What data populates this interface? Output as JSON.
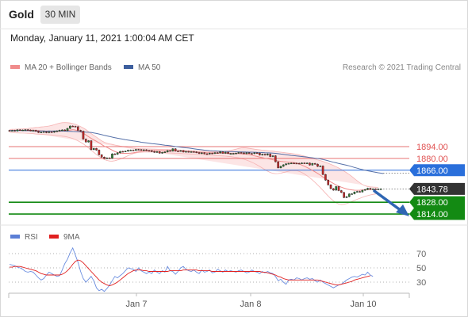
{
  "header": {
    "title": "Gold",
    "timeframe": "30 MIN"
  },
  "datetime": "Monday, January 11, 2021 1:00:04 AM CET",
  "legend": {
    "main": [
      {
        "label": "MA 20 + Bollinger Bands",
        "color": "#f08c8c"
      },
      {
        "label": "MA 50",
        "color": "#3d5f9e"
      }
    ],
    "rsi": [
      {
        "label": "RSI",
        "color": "#5b7fd6"
      },
      {
        "label": "9MA",
        "color": "#e02020"
      }
    ]
  },
  "copyright": "Research © 2021 Trading Central",
  "chart_data": [
    {
      "type": "candlestick",
      "ylim": [
        1808,
        1912
      ],
      "x_ticks": [
        "Jan 7",
        "Jan 8",
        "Jan 10"
      ],
      "levels": [
        {
          "value": 1894.0,
          "label": "1894.00",
          "color": "#e05050",
          "kind": "resistance"
        },
        {
          "value": 1880.0,
          "label": "1880.00",
          "color": "#e05050",
          "kind": "resistance"
        },
        {
          "value": 1866.0,
          "label": "1866.00",
          "color": "#2a6fdb",
          "kind": "pivot"
        },
        {
          "value": 1843.78,
          "label": "1843.78",
          "color": "#333333",
          "kind": "last"
        },
        {
          "value": 1828.0,
          "label": "1828.00",
          "color": "#138a13",
          "kind": "support"
        },
        {
          "value": 1814.0,
          "label": "1814.00",
          "color": "#138a13",
          "kind": "support"
        }
      ],
      "close": [
        1912.8,
        1913.2,
        1912.5,
        1913.9,
        1913.4,
        1913.7,
        1914.1,
        1913.6,
        1912.9,
        1913.3,
        1912.2,
        1910.8,
        1911.2,
        1911.7,
        1910.6,
        1911.5,
        1911.1,
        1912.0,
        1912.6,
        1913.4,
        1913.8,
        1913.0,
        1915.6,
        1918.4,
        1918.1,
        1917.6,
        1913.3,
        1912.3,
        1902.9,
        1899.5,
        1901.0,
        1890.4,
        1891.8,
        1889.9,
        1884.3,
        1881.5,
        1879.9,
        1880.6,
        1880.2,
        1885.4,
        1884.9,
        1886.6,
        1888.3,
        1888.1,
        1888.6,
        1889.7,
        1889.8,
        1889.5,
        1890.6,
        1890.4,
        1889.7,
        1890.2,
        1889.4,
        1889.3,
        1888.2,
        1887.3,
        1888.0,
        1886.3,
        1887.1,
        1887.7,
        1889.3,
        1888.8,
        1891.4,
        1888.8,
        1888.6,
        1889.3,
        1887.6,
        1888.3,
        1887.5,
        1888.0,
        1887.7,
        1886.9,
        1885.9,
        1886.6,
        1885.5,
        1885.3,
        1886.2,
        1885.9,
        1886.8,
        1886.5,
        1887.9,
        1886.1,
        1887.3,
        1885.8,
        1885.8,
        1885.9,
        1886.3,
        1887.0,
        1886.6,
        1885.6,
        1886.7,
        1885.9,
        1885.7,
        1886.6,
        1886.2,
        1884.1,
        1885.0,
        1884.1,
        1885.2,
        1882.2,
        1883.1,
        1876.0,
        1868.8,
        1870.6,
        1872.4,
        1873.6,
        1874.1,
        1874.4,
        1874.3,
        1874.2,
        1874.1,
        1874.6,
        1874.4,
        1874.5,
        1872.1,
        1874.0,
        1873.2,
        1870.5,
        1871.0,
        1860.9,
        1854.3,
        1848.6,
        1844.1,
        1842.3,
        1846.6,
        1841.8,
        1839.6,
        1833.5,
        1834.6,
        1837.8,
        1838.0,
        1840.1,
        1840.8,
        1840.2,
        1842.2,
        1843.1,
        1844.5,
        1843.2,
        1843.8,
        1843.3,
        1843.7,
        1843.78
      ],
      "ma50": [
        1913.0,
        1913.0,
        1913.1,
        1913.2,
        1913.0,
        1913.2,
        1912.8,
        1913.1,
        1912.8,
        1912.7,
        1912.5,
        1912.4,
        1912.6,
        1912.6,
        1912.3,
        1912.5,
        1912.4,
        1912.6,
        1912.6,
        1912.7,
        1912.4,
        1912.4,
        1912.2,
        1912.2,
        1912.0,
        1911.9,
        1911.8,
        1911.7,
        1911.5,
        1911.2,
        1911.0,
        1910.8,
        1910.2,
        1909.6,
        1909.0,
        1908.2,
        1907.4,
        1906.7,
        1906.0,
        1905.3,
        1904.6,
        1904.0,
        1903.4,
        1902.8,
        1902.3,
        1901.8,
        1901.3,
        1900.8,
        1900.3,
        1899.8,
        1899.2,
        1898.8,
        1898.4,
        1898.0,
        1897.6,
        1897.3,
        1896.9,
        1896.5,
        1896.1,
        1895.7,
        1895.4,
        1895.0,
        1894.6,
        1894.1,
        1893.7,
        1893.3,
        1893.0,
        1892.6,
        1892.3,
        1891.9,
        1891.4,
        1891.0,
        1890.6,
        1890.2,
        1889.8,
        1889.5,
        1889.2,
        1889.0,
        1888.9,
        1888.7,
        1888.5,
        1888.4,
        1888.3,
        1888.2,
        1888.1,
        1888.0,
        1887.9,
        1887.8,
        1887.7,
        1887.6,
        1887.5,
        1887.4,
        1887.4,
        1887.3,
        1887.1,
        1887.0,
        1886.9,
        1886.7,
        1886.6,
        1886.5,
        1886.3,
        1886.0,
        1885.6,
        1885.2,
        1884.8,
        1884.4,
        1884.0,
        1883.6,
        1883.3,
        1883.0,
        1882.6,
        1882.2,
        1881.9,
        1881.5,
        1881.1,
        1880.7,
        1880.3,
        1879.9,
        1879.4,
        1878.8,
        1878.0,
        1877.2,
        1876.3,
        1875.5,
        1874.8,
        1874.0,
        1873.3,
        1872.6,
        1871.9,
        1871.1,
        1870.2,
        1869.3,
        1868.4,
        1867.5,
        1866.7,
        1866.0,
        1865.3,
        1864.7,
        1864.1,
        1863.5,
        1863.0,
        1862.5,
        1862.0
      ],
      "ma20": [
        1912.6,
        1912.8,
        1912.8,
        1913.0,
        1913.1,
        1913.2,
        1913.5,
        1913.5,
        1913.6,
        1913.5,
        1913.3,
        1913.1,
        1912.8,
        1912.6,
        1912.2,
        1912.1,
        1911.9,
        1912.0,
        1912.1,
        1912.2,
        1912.5,
        1912.9,
        1913.2,
        1913.6,
        1914.1,
        1913.7,
        1912.6,
        1911.3,
        1909.9,
        1907.8,
        1905.9,
        1903.8,
        1902.0,
        1900.3,
        1898.4,
        1896.4,
        1894.6,
        1893.2,
        1891.5,
        1889.8,
        1888.3,
        1887.2,
        1886.3,
        1886.0,
        1886.0,
        1886.0,
        1886.2,
        1886.6,
        1887.3,
        1887.8,
        1888.3,
        1888.7,
        1889.1,
        1889.3,
        1889.3,
        1889.4,
        1889.3,
        1889.2,
        1889.2,
        1889.1,
        1889.1,
        1889.0,
        1889.0,
        1889.0,
        1888.8,
        1888.7,
        1888.5,
        1888.3,
        1888.1,
        1887.9,
        1887.7,
        1887.5,
        1887.4,
        1887.2,
        1887.0,
        1886.8,
        1886.7,
        1886.6,
        1886.5,
        1886.4,
        1886.3,
        1886.2,
        1886.1,
        1886.0,
        1885.9,
        1885.8,
        1885.7,
        1885.6,
        1885.4,
        1885.2,
        1885.0,
        1884.5,
        1883.8,
        1883.0,
        1882.3,
        1881.6,
        1880.9,
        1880.2,
        1879.6,
        1879.0,
        1878.4,
        1877.7,
        1877.0,
        1876.5,
        1876.1,
        1875.8,
        1875.6,
        1875.4,
        1875.1,
        1874.5,
        1873.4,
        1872.1,
        1870.7,
        1869.2,
        1867.6,
        1865.9,
        1864.1,
        1862.2,
        1860.1,
        1858.0,
        1855.9,
        1853.9,
        1852.0,
        1850.2,
        1848.6,
        1847.1,
        1845.8,
        1844.7,
        1843.8,
        1843.1,
        1842.6,
        1842.3,
        1842.2,
        1842.3,
        1842.5,
        1842.7,
        1843.0,
        1843.2,
        1843.4,
        1843.5,
        1843.6
      ],
      "bb_upper": [
        1914.2,
        1914.5,
        1914.6,
        1914.8,
        1914.9,
        1915.0,
        1915.3,
        1915.5,
        1915.9,
        1916.3,
        1916.8,
        1917.0,
        1917.3,
        1917.6,
        1918.0,
        1918.5,
        1919.1,
        1920.0,
        1921.0,
        1921.8,
        1922.4,
        1922.6,
        1922.4,
        1922.0,
        1921.4,
        1920.4,
        1919.2,
        1917.8,
        1916.1,
        1914.2,
        1911.8,
        1909.6,
        1907.4,
        1905.2,
        1903.0,
        1900.9,
        1899.2,
        1898.0,
        1897.2,
        1896.6,
        1895.9,
        1895.3,
        1894.7,
        1894.1,
        1893.5,
        1893.0,
        1892.6,
        1892.2,
        1891.9,
        1891.7,
        1891.5,
        1891.4,
        1891.3,
        1891.2,
        1891.1,
        1891.0,
        1890.9,
        1890.8,
        1890.7,
        1890.6,
        1890.5,
        1890.4,
        1890.3,
        1890.2,
        1890.1,
        1889.9,
        1889.8,
        1889.6,
        1889.5,
        1889.3,
        1889.1,
        1888.9,
        1888.7,
        1888.6,
        1888.5,
        1888.4,
        1888.3,
        1888.2,
        1888.1,
        1888.0,
        1888.2,
        1888.4,
        1888.7,
        1889.0,
        1889.5,
        1890.2,
        1891.0,
        1891.8,
        1892.5,
        1892.7,
        1892.4,
        1891.9,
        1891.5,
        1891.0,
        1890.6,
        1890.2,
        1889.8,
        1889.5,
        1889.2,
        1888.9,
        1888.6,
        1888.2,
        1887.8,
        1887.4,
        1887.0,
        1886.6,
        1886.2,
        1885.8,
        1885.4,
        1885.0,
        1884.3,
        1883.5,
        1882.7,
        1881.9,
        1881.0,
        1880.2,
        1879.3,
        1878.3,
        1877.4,
        1876.5,
        1875.4,
        1874.2,
        1872.9,
        1871.6,
        1870.2,
        1868.6,
        1866.9,
        1865.0,
        1863.0,
        1860.9,
        1858.5,
        1856.0,
        1853.5,
        1851.1,
        1849.0,
        1847.5,
        1846.5,
        1846.0,
        1845.8,
        1845.7,
        1845.6
      ],
      "bb_lower": [
        1911.0,
        1910.7,
        1910.4,
        1910.3,
        1910.2,
        1910.1,
        1910.0,
        1909.8,
        1909.6,
        1909.3,
        1909.0,
        1908.8,
        1908.6,
        1908.4,
        1908.2,
        1908.0,
        1907.8,
        1907.5,
        1907.2,
        1906.8,
        1906.4,
        1906.0,
        1905.4,
        1904.6,
        1903.6,
        1902.4,
        1901.0,
        1899.2,
        1897.2,
        1894.9,
        1892.4,
        1889.8,
        1887.2,
        1884.7,
        1882.4,
        1880.4,
        1878.7,
        1877.5,
        1876.9,
        1876.8,
        1877.3,
        1878.1,
        1879.1,
        1880.4,
        1881.8,
        1883.2,
        1884.6,
        1885.7,
        1886.5,
        1887.0,
        1887.3,
        1887.5,
        1887.6,
        1887.7,
        1887.6,
        1887.5,
        1887.3,
        1887.1,
        1886.9,
        1886.7,
        1886.5,
        1886.4,
        1886.3,
        1886.1,
        1886.0,
        1885.8,
        1885.6,
        1885.5,
        1885.3,
        1885.2,
        1885.0,
        1884.8,
        1884.7,
        1884.5,
        1884.3,
        1884.1,
        1883.9,
        1883.7,
        1883.5,
        1883.3,
        1883.1,
        1882.9,
        1882.7,
        1882.4,
        1882.1,
        1881.7,
        1881.2,
        1880.6,
        1879.9,
        1879.0,
        1878.0,
        1876.8,
        1875.5,
        1874.0,
        1872.3,
        1870.5,
        1868.6,
        1866.6,
        1864.8,
        1863.3,
        1862.3,
        1861.9,
        1862.0,
        1862.5,
        1863.2,
        1864.0,
        1864.8,
        1865.4,
        1865.6,
        1865.4,
        1864.6,
        1863.3,
        1861.5,
        1859.4,
        1857.0,
        1854.4,
        1851.6,
        1848.6,
        1845.4,
        1842.1,
        1838.7,
        1835.4,
        1832.3,
        1829.6,
        1827.4,
        1825.8,
        1825.2,
        1825.5,
        1826.4,
        1827.5,
        1828.8,
        1830.1,
        1831.4,
        1832.6,
        1833.8,
        1834.9,
        1835.8,
        1836.6,
        1837.3,
        1837.8,
        1838.2
      ]
    },
    {
      "type": "line",
      "ylim": [
        0,
        100
      ],
      "y_ticks": [
        70,
        50,
        30
      ],
      "rsi": [
        55,
        54,
        53,
        51,
        50,
        48,
        45,
        44,
        45,
        44,
        40,
        36,
        33,
        35,
        40,
        44,
        42,
        40,
        38,
        39,
        47,
        56,
        62,
        71,
        78,
        68,
        58,
        45,
        35,
        30,
        34,
        38,
        32,
        22,
        18,
        20,
        17,
        21,
        26,
        32,
        38,
        36,
        39,
        42,
        46,
        50,
        49,
        48,
        45,
        50,
        46,
        44,
        42,
        44,
        42,
        47,
        44,
        42,
        46,
        44,
        52,
        46,
        45,
        41,
        45,
        50,
        52,
        48,
        46,
        45,
        47,
        44,
        42,
        47,
        44,
        45,
        47,
        43,
        44,
        48,
        46,
        44,
        47,
        45,
        46,
        45,
        44,
        46,
        47,
        45,
        43,
        44,
        47,
        45,
        44,
        42,
        45,
        43,
        45,
        43,
        42,
        38,
        32,
        34,
        30,
        27,
        33,
        34,
        33,
        36,
        35,
        33,
        35,
        36,
        34,
        35,
        32,
        30,
        33,
        30,
        28,
        26,
        24,
        22,
        24,
        26,
        27,
        30,
        33,
        35,
        37,
        38,
        37,
        39,
        41,
        40,
        44,
        40,
        38
      ],
      "ma9": [
        51,
        51,
        52,
        52,
        52,
        51,
        50,
        49,
        48,
        47,
        46,
        44,
        42,
        41,
        40,
        40,
        40,
        40,
        40,
        40,
        41,
        43,
        46,
        50,
        55,
        59,
        61,
        60,
        57,
        53,
        49,
        45,
        41,
        37,
        33,
        30,
        28,
        26,
        25,
        26,
        28,
        30,
        33,
        36,
        39,
        42,
        44,
        46,
        47,
        47,
        47,
        46,
        46,
        45,
        45,
        45,
        45,
        45,
        45,
        45,
        45,
        46,
        46,
        46,
        46,
        46,
        47,
        47,
        47,
        47,
        47,
        47,
        46,
        46,
        46,
        46,
        46,
        45,
        45,
        45,
        45,
        45,
        45,
        45,
        45,
        45,
        45,
        45,
        45,
        45,
        45,
        45,
        45,
        45,
        45,
        45,
        44,
        44,
        43,
        42,
        41,
        40,
        38,
        37,
        35,
        34,
        33,
        33,
        33,
        33,
        33,
        33,
        33,
        33,
        33,
        33,
        33,
        33,
        32,
        31,
        30,
        29,
        28,
        27,
        26,
        26,
        27,
        28,
        29,
        30,
        31,
        33,
        34,
        35,
        36,
        37,
        38,
        39
      ]
    }
  ]
}
